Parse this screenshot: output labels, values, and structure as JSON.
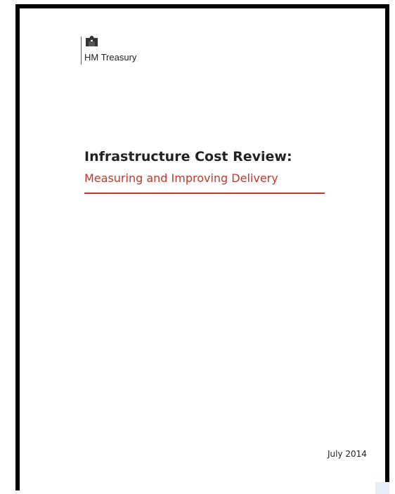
{
  "header": {
    "organisation": "HM Treasury"
  },
  "title": "Infrastructure Cost Review:",
  "subtitle": "Measuring and Improving Delivery",
  "date": "July 2014"
}
